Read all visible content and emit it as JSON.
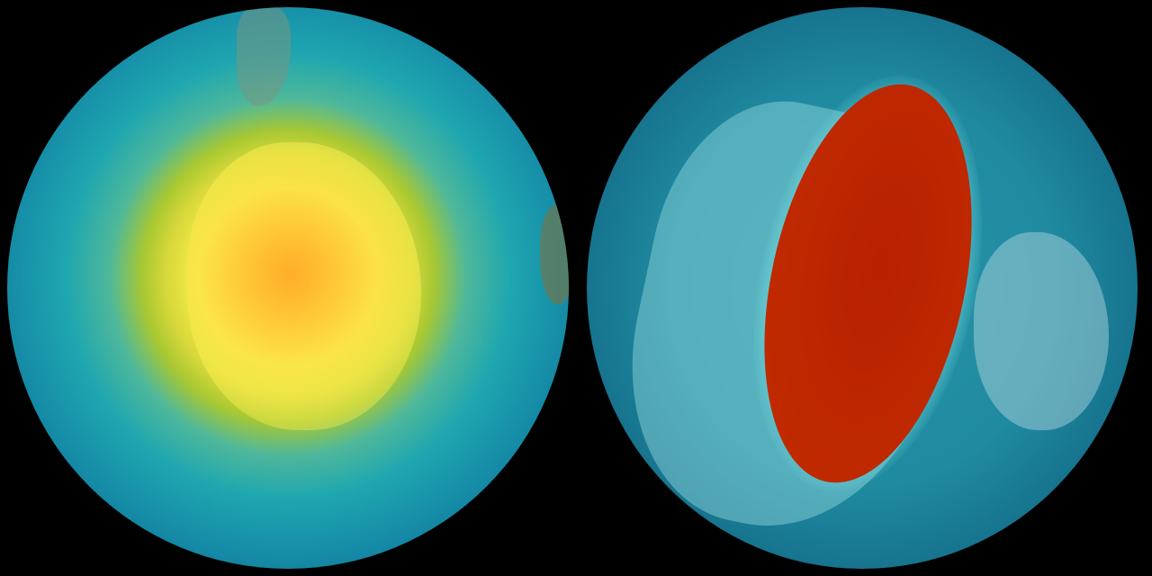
{
  "globes": [
    {
      "view": "south-polar",
      "palette": [
        "#ffb22a",
        "#f6ef4a",
        "#1ea6b0",
        "#062a44"
      ]
    },
    {
      "view": "oblique",
      "palette": [
        "#c02000",
        "#f5a000",
        "#6fd8e0",
        "#136a86"
      ]
    }
  ]
}
